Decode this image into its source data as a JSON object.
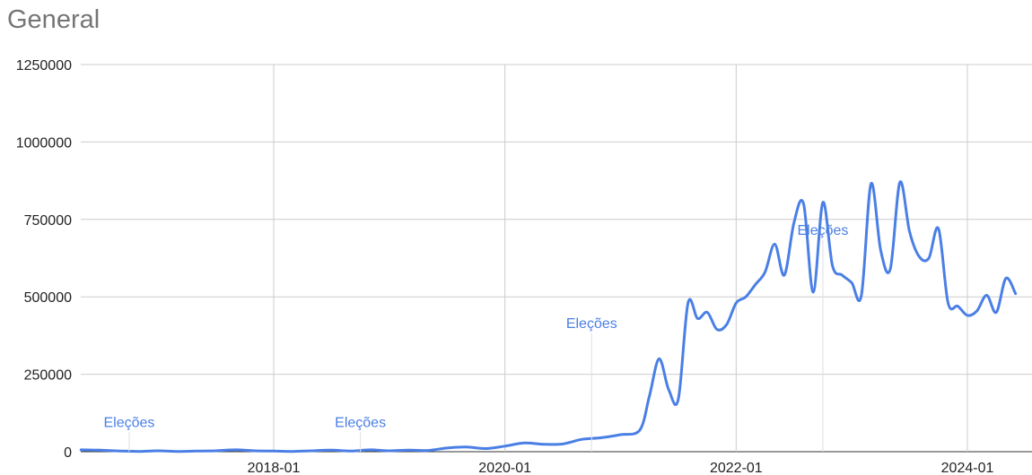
{
  "chart_data": {
    "type": "line",
    "title": "General",
    "xlabel": "",
    "ylabel": "",
    "ylim": [
      0,
      1250000
    ],
    "xlim": [
      "2016-05-01",
      "2024-06-01"
    ],
    "grid": true,
    "yticks": [
      {
        "value": 0,
        "label": "0"
      },
      {
        "value": 250000,
        "label": "250000"
      },
      {
        "value": 500000,
        "label": "500000"
      },
      {
        "value": 750000,
        "label": "750000"
      },
      {
        "value": 1000000,
        "label": "1000000"
      },
      {
        "value": 1250000,
        "label": "1250000"
      }
    ],
    "xticks": [
      {
        "value": "2018-01-01",
        "label": "2018-01"
      },
      {
        "value": "2020-01-01",
        "label": "2020-01"
      },
      {
        "value": "2022-01-01",
        "label": "2022-01"
      },
      {
        "value": "2024-01-01",
        "label": "2024-01"
      }
    ],
    "line_color": "#4a7fe5",
    "series": [
      {
        "name": "",
        "points": [
          [
            "2016-05-01",
            6000
          ],
          [
            "2016-07-01",
            5000
          ],
          [
            "2016-09-01",
            2000
          ],
          [
            "2016-11-01",
            1000
          ],
          [
            "2017-01-01",
            3000
          ],
          [
            "2017-03-01",
            1000
          ],
          [
            "2017-05-01",
            2000
          ],
          [
            "2017-07-01",
            3000
          ],
          [
            "2017-09-01",
            6000
          ],
          [
            "2017-11-01",
            3000
          ],
          [
            "2018-01-01",
            2000
          ],
          [
            "2018-03-01",
            1000
          ],
          [
            "2018-05-01",
            3000
          ],
          [
            "2018-07-01",
            5000
          ],
          [
            "2018-09-01",
            2000
          ],
          [
            "2018-11-01",
            6000
          ],
          [
            "2019-01-01",
            3000
          ],
          [
            "2019-03-01",
            5000
          ],
          [
            "2019-05-01",
            4000
          ],
          [
            "2019-07-01",
            12000
          ],
          [
            "2019-09-01",
            15000
          ],
          [
            "2019-11-01",
            10000
          ],
          [
            "2020-01-01",
            18000
          ],
          [
            "2020-03-01",
            28000
          ],
          [
            "2020-05-01",
            24000
          ],
          [
            "2020-07-01",
            25000
          ],
          [
            "2020-09-01",
            40000
          ],
          [
            "2020-11-01",
            45000
          ],
          [
            "2021-01-01",
            55000
          ],
          [
            "2021-03-01",
            70000
          ],
          [
            "2021-04-01",
            180000
          ],
          [
            "2021-05-01",
            300000
          ],
          [
            "2021-06-01",
            200000
          ],
          [
            "2021-07-01",
            170000
          ],
          [
            "2021-08-01",
            480000
          ],
          [
            "2021-09-01",
            430000
          ],
          [
            "2021-10-01",
            450000
          ],
          [
            "2021-11-01",
            395000
          ],
          [
            "2021-12-01",
            410000
          ],
          [
            "2022-01-01",
            480000
          ],
          [
            "2022-02-01",
            500000
          ],
          [
            "2022-03-01",
            540000
          ],
          [
            "2022-04-01",
            580000
          ],
          [
            "2022-05-01",
            670000
          ],
          [
            "2022-06-01",
            570000
          ],
          [
            "2022-07-01",
            740000
          ],
          [
            "2022-08-01",
            800000
          ],
          [
            "2022-09-01",
            515000
          ],
          [
            "2022-10-01",
            805000
          ],
          [
            "2022-11-01",
            600000
          ],
          [
            "2022-12-01",
            570000
          ],
          [
            "2023-01-01",
            545000
          ],
          [
            "2023-02-01",
            505000
          ],
          [
            "2023-03-01",
            865000
          ],
          [
            "2023-04-01",
            650000
          ],
          [
            "2023-05-01",
            590000
          ],
          [
            "2023-06-01",
            870000
          ],
          [
            "2023-07-01",
            710000
          ],
          [
            "2023-08-01",
            630000
          ],
          [
            "2023-09-01",
            625000
          ],
          [
            "2023-10-01",
            720000
          ],
          [
            "2023-11-01",
            480000
          ],
          [
            "2023-12-01",
            470000
          ],
          [
            "2024-01-01",
            440000
          ],
          [
            "2024-02-01",
            455000
          ],
          [
            "2024-03-01",
            505000
          ],
          [
            "2024-04-01",
            450000
          ],
          [
            "2024-05-01",
            560000
          ],
          [
            "2024-06-01",
            510000
          ]
        ]
      }
    ],
    "annotations": [
      {
        "label": "Eleções",
        "x": "2016-10-01",
        "y": 80000
      },
      {
        "label": "Eleções",
        "x": "2018-10-01",
        "y": 80000
      },
      {
        "label": "Eleções",
        "x": "2020-10-01",
        "y": 400000
      },
      {
        "label": "Eleções",
        "x": "2022-10-01",
        "y": 700000
      }
    ]
  }
}
